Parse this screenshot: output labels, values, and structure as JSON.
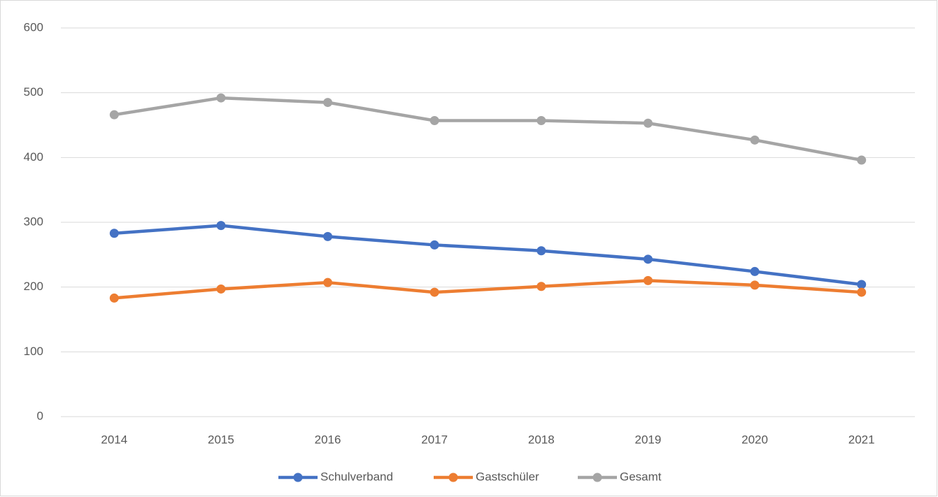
{
  "chart_data": {
    "type": "line",
    "categories": [
      "2014",
      "2015",
      "2016",
      "2017",
      "2018",
      "2019",
      "2020",
      "2021"
    ],
    "series": [
      {
        "name": "Schulverband",
        "color": "#4472c4",
        "values": [
          283,
          295,
          278,
          265,
          256,
          243,
          224,
          204
        ]
      },
      {
        "name": "Gastschüler",
        "color": "#ed7d31",
        "values": [
          183,
          197,
          207,
          192,
          201,
          210,
          203,
          192
        ]
      },
      {
        "name": "Gesamt",
        "color": "#a5a5a5",
        "values": [
          466,
          492,
          485,
          457,
          457,
          453,
          427,
          396
        ]
      }
    ],
    "ylim": [
      0,
      600
    ],
    "yticks": [
      0,
      100,
      200,
      300,
      400,
      500,
      600
    ],
    "grid": true,
    "legend": "bottom"
  }
}
